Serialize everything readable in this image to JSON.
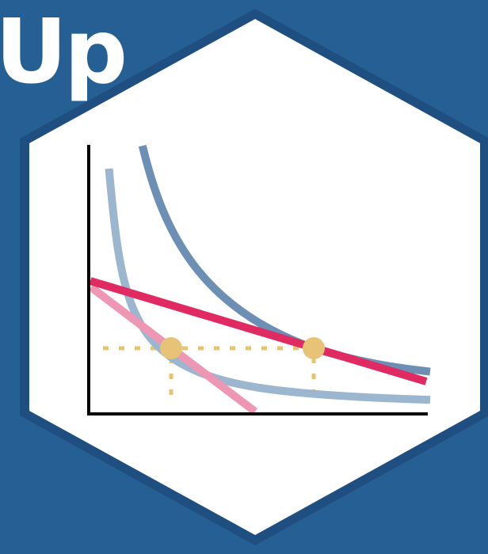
{
  "logo": {
    "wordmark": "Up"
  },
  "colors": {
    "background": "#255f93",
    "hex_border": "#1f4f80",
    "hex_fill": "#ffffff",
    "axes": "#000000",
    "curve_dark": "#6d8fb4",
    "curve_light": "#9cb6cf",
    "budget_dark": "#e02a62",
    "budget_light": "#ee97b4",
    "points": "#e7c378",
    "guides": "#e7c378"
  },
  "icons": [
    "hexagon-badge",
    "indifference-curve-chart"
  ]
}
